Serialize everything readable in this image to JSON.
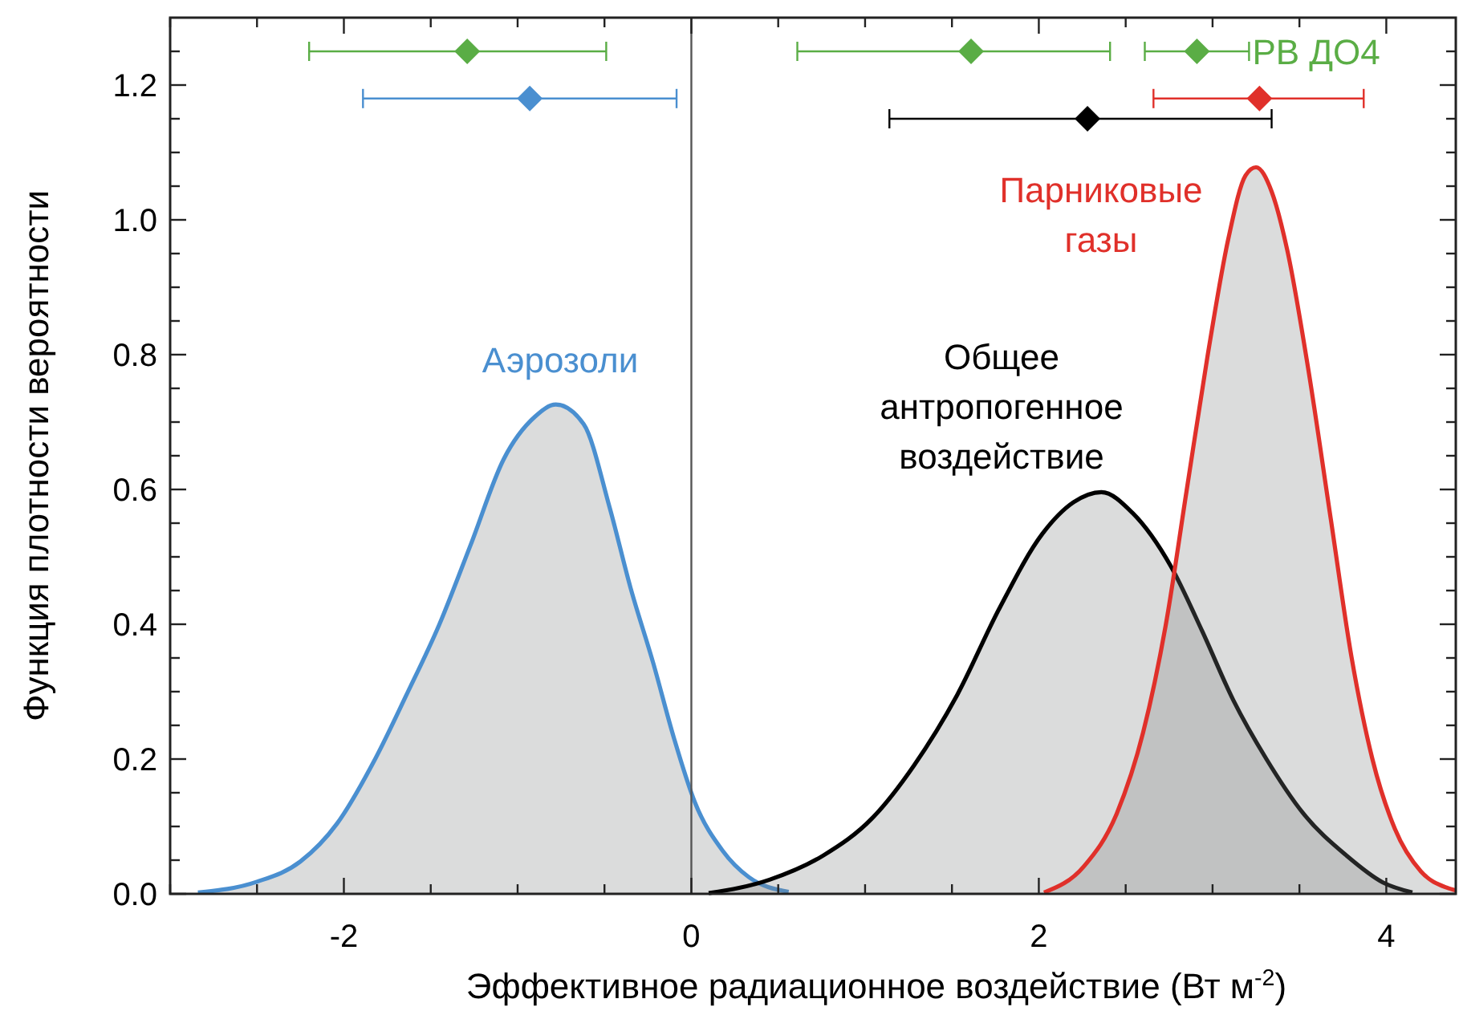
{
  "chart_data": {
    "type": "area",
    "xlabel": "Эффективное радиационное воздействие (Вт м$^{-2}$)",
    "ylabel": "Функция плотности вероятности",
    "xlim": [
      -3,
      4.4
    ],
    "ylim": [
      0,
      1.3
    ],
    "xticks": [
      {
        "value": -3,
        "label": null
      },
      {
        "value": -2.5,
        "label": null
      },
      -2,
      {
        "value": -1.5,
        "label": null
      },
      {
        "value": -1,
        "label": null
      },
      {
        "value": -0.5,
        "label": null
      },
      0,
      {
        "value": 0.5,
        "label": null
      },
      {
        "value": 1,
        "label": null
      },
      {
        "value": 1.5,
        "label": null
      },
      2,
      {
        "value": 2.5,
        "label": null
      },
      {
        "value": 3,
        "label": null
      },
      {
        "value": 3.5,
        "label": null
      },
      4
    ],
    "yticks": [
      {
        "value": 0,
        "label": "0.0"
      },
      {
        "value": 0.05,
        "label": null
      },
      {
        "value": 0.1,
        "label": null
      },
      {
        "value": 0.15,
        "label": null
      },
      {
        "value": 0.2,
        "label": "0.2"
      },
      {
        "value": 0.25,
        "label": null
      },
      {
        "value": 0.3,
        "label": null
      },
      {
        "value": 0.35,
        "label": null
      },
      {
        "value": 0.4,
        "label": "0.4"
      },
      {
        "value": 0.45,
        "label": null
      },
      {
        "value": 0.5,
        "label": null
      },
      {
        "value": 0.55,
        "label": null
      },
      {
        "value": 0.6,
        "label": "0.6"
      },
      {
        "value": 0.65,
        "label": null
      },
      {
        "value": 0.7,
        "label": null
      },
      {
        "value": 0.75,
        "label": null
      },
      {
        "value": 0.8,
        "label": "0.8"
      },
      {
        "value": 0.85,
        "label": null
      },
      {
        "value": 0.9,
        "label": null
      },
      {
        "value": 0.95,
        "label": null
      },
      {
        "value": 1.0,
        "label": "1.0"
      },
      {
        "value": 1.05,
        "label": null
      },
      {
        "value": 1.1,
        "label": null
      },
      {
        "value": 1.15,
        "label": null
      },
      {
        "value": 1.2,
        "label": "1.2"
      },
      {
        "value": 1.25,
        "label": null
      }
    ],
    "grid": false,
    "ref_lines": [
      {
        "axis": "x",
        "value": 0,
        "color": "#555555"
      }
    ],
    "series": [
      {
        "name": "Аэрозоли",
        "color": "#4a8fd0",
        "x": [
          -2.84,
          -2.5,
          -2.25,
          -2.04,
          -1.82,
          -1.64,
          -1.45,
          -1.27,
          -1.08,
          -0.9,
          -0.78,
          -0.62,
          -0.47,
          -0.35,
          -0.22,
          -0.1,
          0.02,
          0.18,
          0.33,
          0.56
        ],
        "values": [
          0.002,
          0.018,
          0.048,
          0.104,
          0.2,
          0.295,
          0.4,
          0.518,
          0.645,
          0.708,
          0.726,
          0.697,
          0.573,
          0.454,
          0.343,
          0.231,
          0.136,
          0.064,
          0.025,
          0.003
        ]
      },
      {
        "name": "Общее антропогенное воздействие",
        "color": "#000000",
        "x": [
          0.1,
          0.45,
          0.76,
          1.04,
          1.28,
          1.53,
          1.77,
          2.02,
          2.2,
          2.36,
          2.54,
          2.76,
          2.94,
          3.12,
          3.31,
          3.52,
          3.77,
          3.98,
          4.15
        ],
        "values": [
          0.001,
          0.021,
          0.057,
          0.112,
          0.19,
          0.295,
          0.422,
          0.534,
          0.581,
          0.596,
          0.565,
          0.486,
          0.39,
          0.287,
          0.2,
          0.12,
          0.057,
          0.017,
          0.002
        ]
      },
      {
        "name": "Парниковые газы",
        "color": "#e0302a",
        "x": [
          2.03,
          2.26,
          2.45,
          2.6,
          2.73,
          2.85,
          2.97,
          3.09,
          3.19,
          3.25,
          3.34,
          3.43,
          3.55,
          3.68,
          3.8,
          3.92,
          4.05,
          4.2,
          4.35,
          4.4
        ],
        "values": [
          0.002,
          0.041,
          0.12,
          0.239,
          0.398,
          0.597,
          0.796,
          0.971,
          1.066,
          1.078,
          1.042,
          0.955,
          0.78,
          0.557,
          0.351,
          0.2,
          0.096,
          0.033,
          0.009,
          0.005
        ]
      },
      {
        "name": "РВ ДО4",
        "type": "scatter",
        "color": "#5aad45",
        "marker": "diamond",
        "x": [
          -1.29,
          1.61,
          2.91
        ],
        "values": [
          1.25,
          1.25,
          1.25
        ],
        "xerrors": [
          [
            -2.2,
            -0.49
          ],
          [
            0.61,
            2.41
          ],
          [
            2.61,
            3.21
          ]
        ]
      },
      {
        "type": "scatter",
        "color": "#4a8fd0",
        "marker": "diamond",
        "x": [
          -0.93
        ],
        "values": [
          1.18
        ],
        "xerrors": [
          [
            -1.89,
            -0.085
          ]
        ]
      },
      {
        "type": "scatter",
        "color": "#e0302a",
        "marker": "diamond",
        "x": [
          3.27
        ],
        "values": [
          1.18
        ],
        "xerrors": [
          [
            2.66,
            3.87
          ]
        ]
      },
      {
        "type": "scatter",
        "color": "#000000",
        "marker": "diamond",
        "x": [
          2.28
        ],
        "values": [
          1.15
        ],
        "xerrors": [
          [
            1.14,
            3.34
          ]
        ]
      }
    ]
  }
}
